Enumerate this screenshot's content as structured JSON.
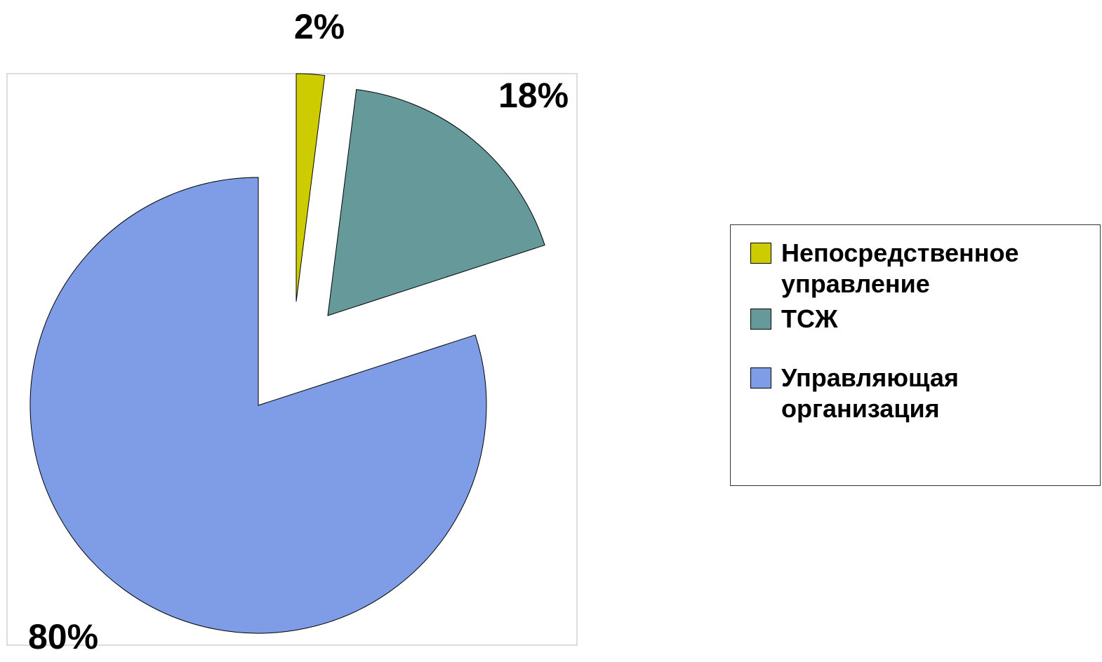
{
  "chart_data": {
    "type": "pie",
    "categories": [
      "Непосредственное управление",
      "ТСЖ",
      "Управляющая организация"
    ],
    "values": [
      2,
      18,
      80
    ],
    "value_labels": [
      "2%",
      "18%",
      "80%"
    ],
    "colors": [
      "#cccc00",
      "#669999",
      "#7f9ce6"
    ],
    "legend": "right"
  }
}
